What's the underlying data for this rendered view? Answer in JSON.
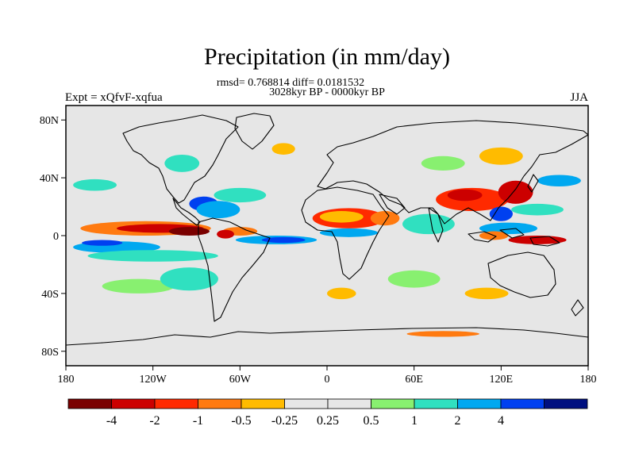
{
  "title": "Precipitation (in mm/day)",
  "stats_line": "rmsd= 0.768814 diff= 0.0181532",
  "period_line": "3028kyr BP - 0000kyr BP",
  "left_label": "Expt = xQfvF-xqfua",
  "right_label": "JJA",
  "lat_ticks": [
    {
      "lat": 80,
      "label": "80N"
    },
    {
      "lat": 40,
      "label": "40N"
    },
    {
      "lat": 0,
      "label": "0"
    },
    {
      "lat": -40,
      "label": "40S"
    },
    {
      "lat": -80,
      "label": "80S"
    }
  ],
  "lon_ticks": [
    {
      "lon": -180,
      "label": "180"
    },
    {
      "lon": -120,
      "label": "120W"
    },
    {
      "lon": -60,
      "label": "60W"
    },
    {
      "lon": 0,
      "label": "0"
    },
    {
      "lon": 60,
      "label": "60E"
    },
    {
      "lon": 120,
      "label": "120E"
    },
    {
      "lon": 180,
      "label": "180"
    }
  ],
  "colorbar": {
    "colors": [
      "#7a0000",
      "#cc0000",
      "#ff2a00",
      "#ff7a10",
      "#ffbb00",
      "#e6e6e6",
      "#e6e6e6",
      "#88f070",
      "#30e0c0",
      "#00a8f0",
      "#0040f0",
      "#001080"
    ],
    "labels": [
      "-4",
      "-2",
      "-1",
      "-0.5",
      "-0.25",
      "0.25",
      "0.5",
      "1",
      "2",
      "4"
    ]
  },
  "map": {
    "background": "#e6e6e6",
    "lon_range": [
      -180,
      180
    ],
    "lat_range": [
      -90,
      90
    ],
    "anomaly_patches": [
      {
        "lon": -125,
        "lat": 5,
        "rx": 45,
        "ry": 5,
        "color": "#ff7a10"
      },
      {
        "lon": -115,
        "lat": 5,
        "rx": 30,
        "ry": 3,
        "color": "#cc0000"
      },
      {
        "lon": -95,
        "lat": 3,
        "rx": 14,
        "ry": 3,
        "color": "#7a0000"
      },
      {
        "lon": -145,
        "lat": -8,
        "rx": 30,
        "ry": 4,
        "color": "#00a8f0"
      },
      {
        "lon": -120,
        "lat": -14,
        "rx": 45,
        "ry": 4,
        "color": "#30e0c0"
      },
      {
        "lon": -155,
        "lat": -5,
        "rx": 14,
        "ry": 2,
        "color": "#0040f0"
      },
      {
        "lon": -85,
        "lat": 22,
        "rx": 10,
        "ry": 5,
        "color": "#0040f0"
      },
      {
        "lon": -75,
        "lat": 18,
        "rx": 15,
        "ry": 6,
        "color": "#00a8f0"
      },
      {
        "lon": -60,
        "lat": 28,
        "rx": 18,
        "ry": 5,
        "color": "#30e0c0"
      },
      {
        "lon": -60,
        "lat": 3,
        "rx": 12,
        "ry": 3,
        "color": "#ff7a10"
      },
      {
        "lon": -70,
        "lat": 1,
        "rx": 6,
        "ry": 3,
        "color": "#cc0000"
      },
      {
        "lon": -35,
        "lat": -3,
        "rx": 28,
        "ry": 3,
        "color": "#00a8f0"
      },
      {
        "lon": -30,
        "lat": -3,
        "rx": 15,
        "ry": 2,
        "color": "#0040f0"
      },
      {
        "lon": 15,
        "lat": 12,
        "rx": 25,
        "ry": 7,
        "color": "#ff2a00"
      },
      {
        "lon": 10,
        "lat": 13,
        "rx": 15,
        "ry": 4,
        "color": "#ffbb00"
      },
      {
        "lon": 15,
        "lat": 2,
        "rx": 20,
        "ry": 3,
        "color": "#00a8f0"
      },
      {
        "lon": 40,
        "lat": 12,
        "rx": 10,
        "ry": 5,
        "color": "#ff7a10"
      },
      {
        "lon": 70,
        "lat": 8,
        "rx": 18,
        "ry": 7,
        "color": "#30e0c0"
      },
      {
        "lon": 100,
        "lat": 25,
        "rx": 25,
        "ry": 8,
        "color": "#ff2a00"
      },
      {
        "lon": 95,
        "lat": 28,
        "rx": 12,
        "ry": 4,
        "color": "#cc0000"
      },
      {
        "lon": 130,
        "lat": 30,
        "rx": 12,
        "ry": 8,
        "color": "#cc0000"
      },
      {
        "lon": 120,
        "lat": 15,
        "rx": 8,
        "ry": 5,
        "color": "#0040f0"
      },
      {
        "lon": 125,
        "lat": 5,
        "rx": 20,
        "ry": 4,
        "color": "#00a8f0"
      },
      {
        "lon": 145,
        "lat": 18,
        "rx": 18,
        "ry": 4,
        "color": "#30e0c0"
      },
      {
        "lon": 160,
        "lat": 38,
        "rx": 15,
        "ry": 4,
        "color": "#00a8f0"
      },
      {
        "lon": 145,
        "lat": -3,
        "rx": 20,
        "ry": 3,
        "color": "#cc0000"
      },
      {
        "lon": 115,
        "lat": 0,
        "rx": 10,
        "ry": 3,
        "color": "#ff7a10"
      },
      {
        "lon": -100,
        "lat": 50,
        "rx": 12,
        "ry": 6,
        "color": "#30e0c0"
      },
      {
        "lon": -30,
        "lat": 60,
        "rx": 8,
        "ry": 4,
        "color": "#ffbb00"
      },
      {
        "lon": 120,
        "lat": 55,
        "rx": 15,
        "ry": 6,
        "color": "#ffbb00"
      },
      {
        "lon": 80,
        "lat": 50,
        "rx": 15,
        "ry": 5,
        "color": "#88f070"
      },
      {
        "lon": -130,
        "lat": -35,
        "rx": 25,
        "ry": 5,
        "color": "#88f070"
      },
      {
        "lon": -95,
        "lat": -30,
        "rx": 20,
        "ry": 8,
        "color": "#30e0c0"
      },
      {
        "lon": 60,
        "lat": -30,
        "rx": 18,
        "ry": 6,
        "color": "#88f070"
      },
      {
        "lon": 10,
        "lat": -40,
        "rx": 10,
        "ry": 4,
        "color": "#ffbb00"
      },
      {
        "lon": 110,
        "lat": -40,
        "rx": 15,
        "ry": 4,
        "color": "#ffbb00"
      },
      {
        "lon": 80,
        "lat": -68,
        "rx": 25,
        "ry": 2,
        "color": "#ff7a10"
      },
      {
        "lon": -160,
        "lat": 35,
        "rx": 15,
        "ry": 4,
        "color": "#30e0c0"
      }
    ]
  }
}
